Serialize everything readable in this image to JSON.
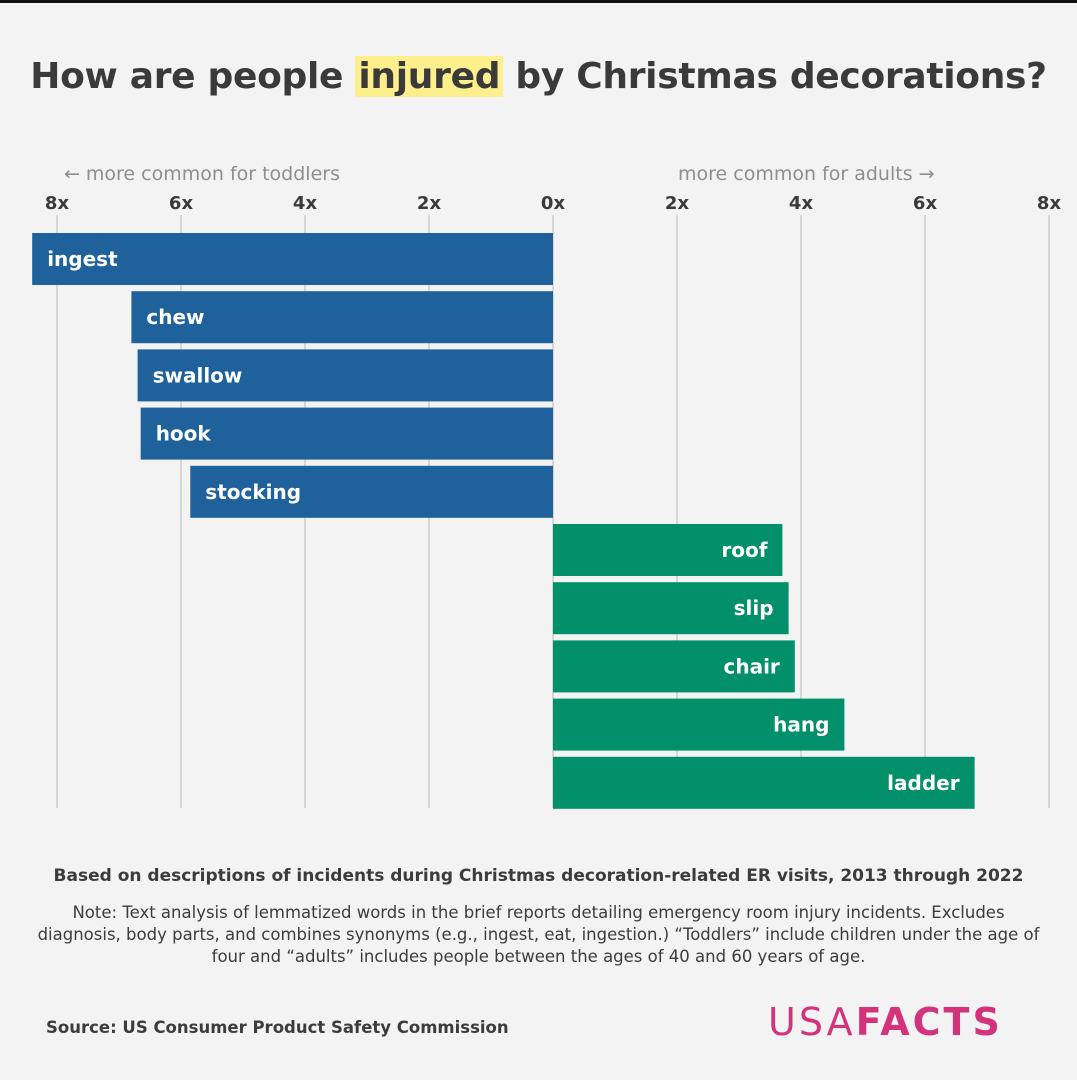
{
  "title": {
    "before": "How are people ",
    "highlight": "injured",
    "after": " by Christmas decorations?"
  },
  "direction_labels": {
    "left": "← more common for toddlers",
    "right": "more common for adults →"
  },
  "chart_data": {
    "type": "bar",
    "orientation": "horizontal-diverging",
    "x_ticks": [
      "8x",
      "6x",
      "4x",
      "2x",
      "0x",
      "2x",
      "4x",
      "6x",
      "8x"
    ],
    "xlim": [
      -8,
      8
    ],
    "grid": true,
    "series": [
      {
        "group": "toddlers",
        "color": "#1f619a",
        "categories": [
          "ingest",
          "chew",
          "swallow",
          "hook",
          "stocking"
        ],
        "values": [
          -8.4,
          -6.8,
          -6.7,
          -6.65,
          -5.85
        ]
      },
      {
        "group": "adults",
        "color": "#02906b",
        "categories": [
          "roof",
          "slip",
          "chair",
          "hang",
          "ladder"
        ],
        "values": [
          3.7,
          3.8,
          3.9,
          4.7,
          6.8
        ]
      }
    ]
  },
  "subtitle": "Based on descriptions of incidents during Christmas decoration-related ER visits, 2013 through 2022",
  "note": "Note: Text analysis of lemmatized words in the brief reports detailing emergency room injury incidents. Excludes diagnosis, body parts, and combines synonyms (e.g., ingest, eat, ingestion.) “Toddlers” include children under the age of four and “adults” includes people between the ages of 40 and 60 years of age.",
  "source": "Source: US Consumer Product Safety Commission",
  "logo": {
    "usa": "USA",
    "facts": "FACTS",
    "color": "#d2337a"
  }
}
